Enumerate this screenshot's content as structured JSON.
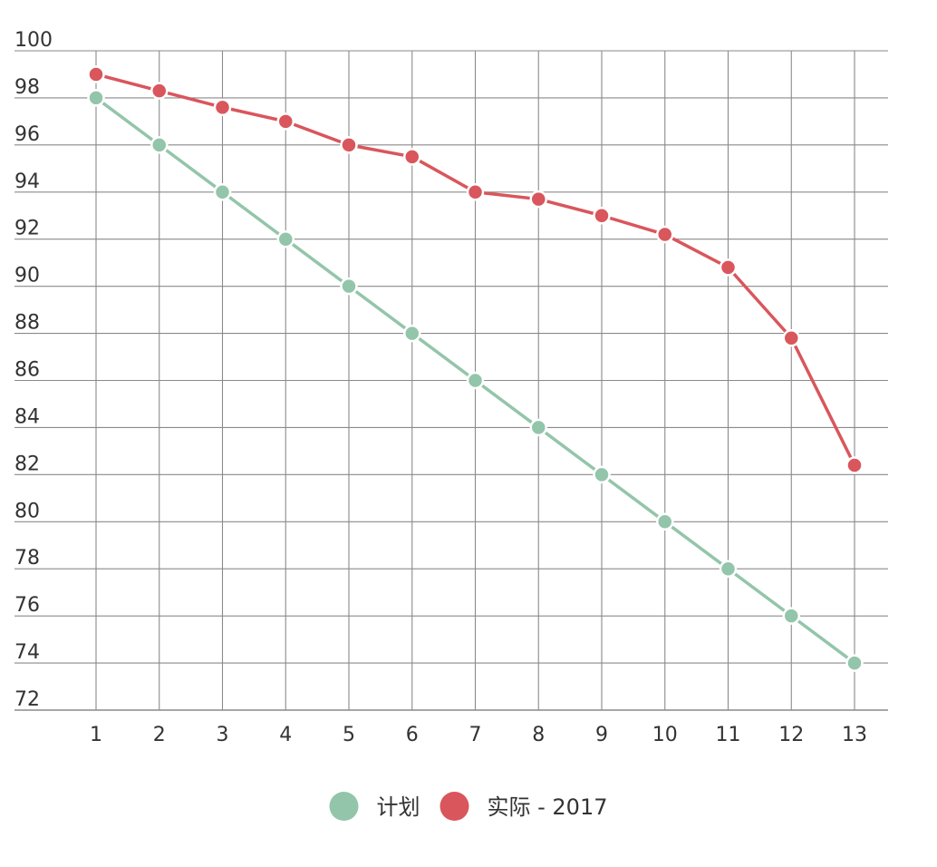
{
  "chart_data": {
    "type": "line",
    "title": "",
    "xlabel": "",
    "ylabel": "",
    "x": [
      1,
      2,
      3,
      4,
      5,
      6,
      7,
      8,
      9,
      10,
      11,
      12,
      13
    ],
    "ylim": [
      72,
      100
    ],
    "yticks": [
      72,
      74,
      76,
      78,
      80,
      82,
      84,
      86,
      88,
      90,
      92,
      94,
      96,
      98,
      100
    ],
    "grid": true,
    "legend_position": "bottom-center",
    "series": [
      {
        "name": "计划",
        "color": "#93c5aa",
        "values": [
          98,
          96,
          94,
          92,
          90,
          88,
          86,
          84,
          82,
          80,
          78,
          76,
          74
        ]
      },
      {
        "name": "实际 - 2017",
        "color": "#d9565c",
        "values": [
          99,
          98.3,
          97.6,
          97,
          96,
          95.5,
          94,
          93.7,
          93,
          92.2,
          90.8,
          87.8,
          82.4
        ]
      }
    ],
    "grid_color": "#8a8a8a",
    "text_color": "#333333"
  }
}
